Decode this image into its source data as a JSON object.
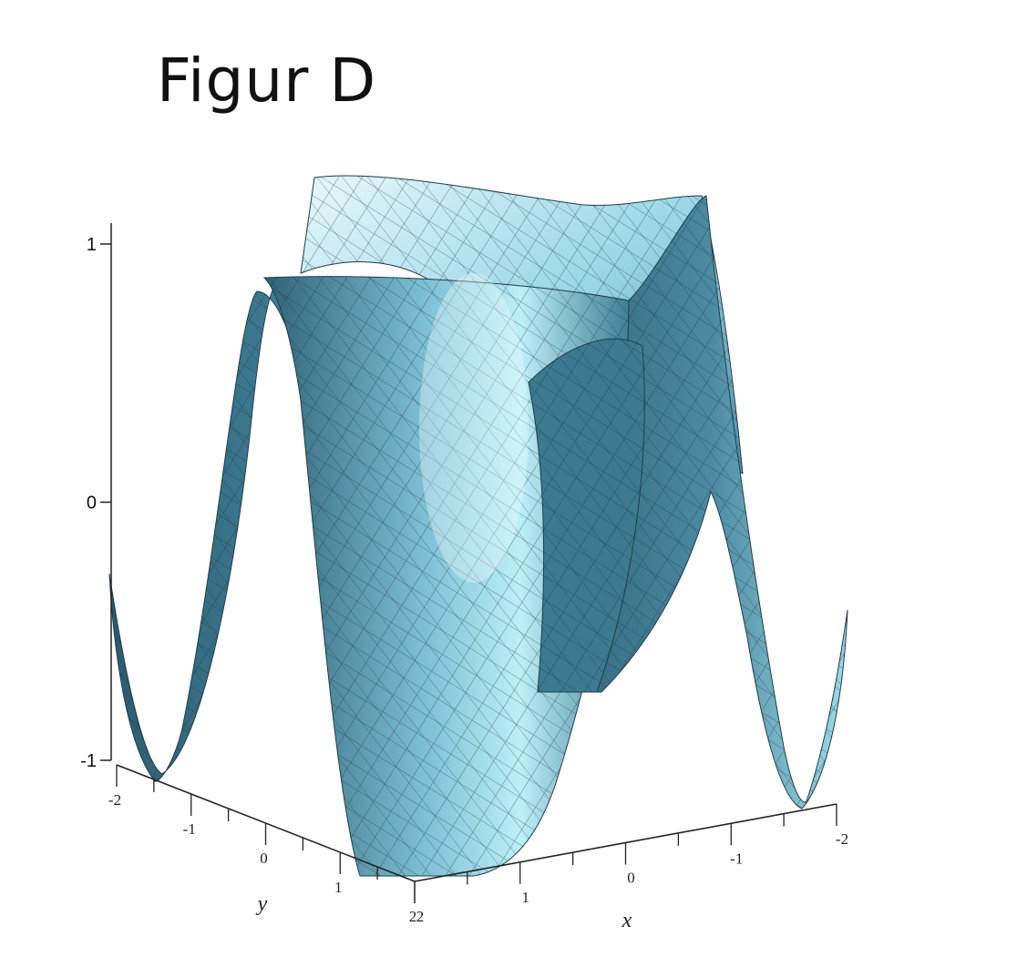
{
  "title": "Figur D",
  "chart_data": {
    "type": "surface3d",
    "title": "Figur D",
    "xlabel": "x",
    "ylabel": "y",
    "zlabel": "",
    "z_ticks": [
      "1",
      "0",
      "-1"
    ],
    "y_ticks": [
      "-2",
      "-1",
      "0",
      "1",
      "2"
    ],
    "x_ticks": [
      "2",
      "1",
      "0",
      "-1",
      "-2"
    ],
    "xlim": [
      -2,
      2
    ],
    "ylim": [
      -2,
      2
    ],
    "zlim": [
      -1,
      1
    ],
    "grid": false,
    "colors": {
      "surface_dark": "#2f6276",
      "surface_mid": "#4f8da3",
      "surface_light": "#a9e4f1",
      "highlight": "#f2fbfd",
      "mesh": "#1a2f38"
    }
  }
}
